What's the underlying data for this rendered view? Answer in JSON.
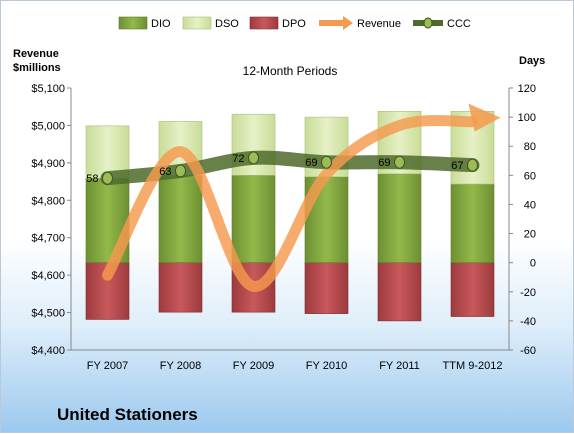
{
  "chart_data": {
    "type": "bar",
    "title": "12-Month Periods",
    "categories": [
      "FY 2007",
      "FY 2008",
      "FY 2009",
      "FY 2010",
      "FY 2011",
      "TTM 9-2012"
    ],
    "left_axis": {
      "label_line1": "Revenue",
      "label_line2": "$millions",
      "min": 4400,
      "max": 5100,
      "step": 100,
      "tick_labels": [
        "$4,400",
        "$4,500",
        "$4,600",
        "$4,700",
        "$4,800",
        "$4,900",
        "$5,000",
        "$5,100"
      ]
    },
    "right_axis": {
      "label": "Days",
      "min": -60,
      "max": 120,
      "step": 20,
      "tick_labels": [
        "-60",
        "-40",
        "-20",
        "0",
        "20",
        "40",
        "60",
        "80",
        "100",
        "120"
      ]
    },
    "series": [
      {
        "name": "DIO",
        "type": "stacked-bar",
        "axis": "right",
        "color": "#7ea13c",
        "values": [
          58,
          60,
          60,
          59,
          61,
          54
        ]
      },
      {
        "name": "DSO",
        "type": "stacked-bar",
        "axis": "right",
        "color": "#d8e8b0",
        "values": [
          36,
          37,
          42,
          41,
          43,
          50
        ]
      },
      {
        "name": "DPO",
        "type": "bar",
        "axis": "right",
        "color": "#b84a4d",
        "values": [
          -39,
          -34,
          -34,
          -35,
          -40,
          -37
        ]
      },
      {
        "name": "Revenue",
        "type": "line",
        "axis": "left",
        "color": "#f59a4e",
        "values": [
          4600,
          4930,
          4570,
          4870,
          5000,
          5010
        ]
      },
      {
        "name": "CCC",
        "type": "line",
        "axis": "right",
        "color": "#4e6b2c",
        "values": [
          58,
          63,
          72,
          69,
          69,
          67
        ]
      }
    ],
    "ccc_labels": [
      "58",
      "63",
      "72",
      "69",
      "69",
      "67"
    ],
    "legend_position": "top",
    "grid": false
  },
  "company": "United Stationers"
}
